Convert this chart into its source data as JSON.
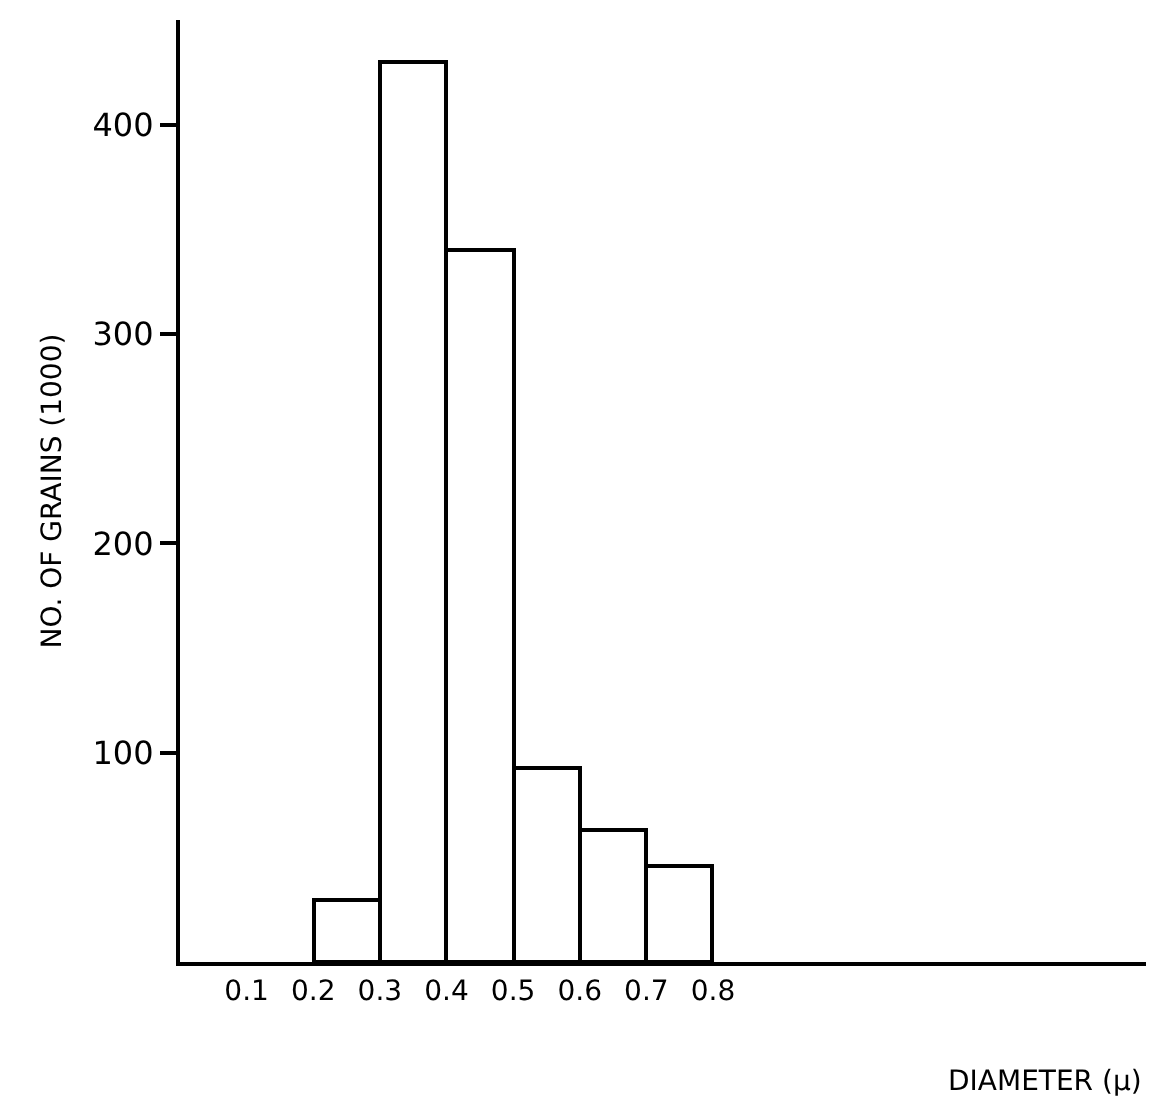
{
  "chart_data": {
    "type": "histogram",
    "xlabel": "DIAMETER (μ)",
    "ylabel": "NO. OF GRAINS (1000)",
    "bins": [
      0.2,
      0.3,
      0.4,
      0.5,
      0.6,
      0.7,
      0.8
    ],
    "values": [
      30,
      430,
      340,
      93,
      63,
      46
    ],
    "color": "#ffffff",
    "xlim": [
      0,
      1.45
    ],
    "xticks": [
      0.1,
      0.2,
      0.3,
      0.4,
      0.5,
      0.6,
      0.7,
      0.8
    ],
    "ylim": [
      0,
      450
    ],
    "yticks": [
      100,
      200,
      300,
      400
    ]
  }
}
